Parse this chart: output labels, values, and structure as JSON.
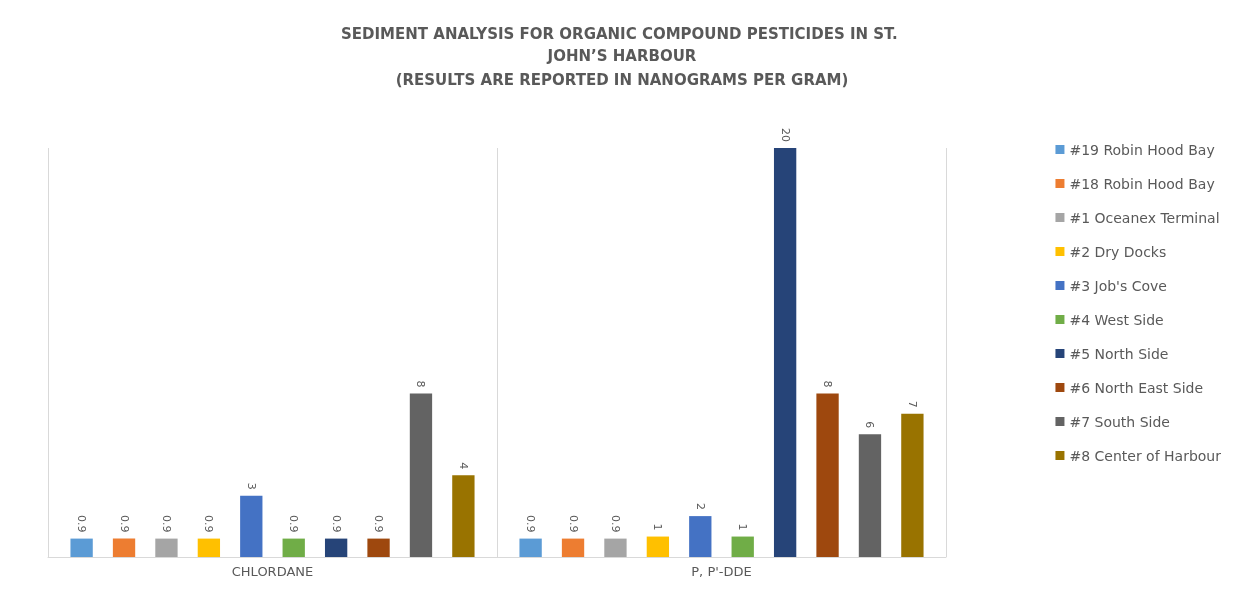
{
  "chart_data": {
    "type": "bar",
    "title": "SEDIMENT ANALYSIS FOR ORGANIC COMPOUND PESTICIDES IN ST. JOHN’S HARBOUR",
    "subtitle": "(RESULTS ARE REPORTED IN NANOGRAMS PER GRAM)",
    "categories": [
      "CHLORDANE",
      "P, P'-DDE"
    ],
    "tick_labels": "x",
    "data_labels": true,
    "legend": "right",
    "grid": "x",
    "series": [
      {
        "name": "#19 Robin Hood Bay",
        "color": "#5b9bd5",
        "values": [
          0.9,
          0.9
        ]
      },
      {
        "name": "#18 Robin Hood Bay",
        "color": "#ed7d31",
        "values": [
          0.9,
          0.9
        ]
      },
      {
        "name": "#1 Oceanex Terminal",
        "color": "#a5a5a5",
        "values": [
          0.9,
          0.9
        ]
      },
      {
        "name": "#2 Dry Docks",
        "color": "#ffc000",
        "values": [
          0.9,
          1
        ]
      },
      {
        "name": "#3 Job's Cove",
        "color": "#4472c4",
        "values": [
          3,
          2
        ]
      },
      {
        "name": "#4 West Side",
        "color": "#70ad47",
        "values": [
          0.9,
          1
        ]
      },
      {
        "name": "#5 North Side",
        "color": "#264478",
        "values": [
          0.9,
          20
        ]
      },
      {
        "name": "#6 North East Side",
        "color": "#9e480e",
        "values": [
          0.9,
          8
        ]
      },
      {
        "name": "#7 South Side",
        "color": "#636363",
        "values": [
          8,
          6
        ]
      },
      {
        "name": "#8 Center of Harbour",
        "color": "#997300",
        "values": [
          4,
          7
        ]
      }
    ]
  }
}
